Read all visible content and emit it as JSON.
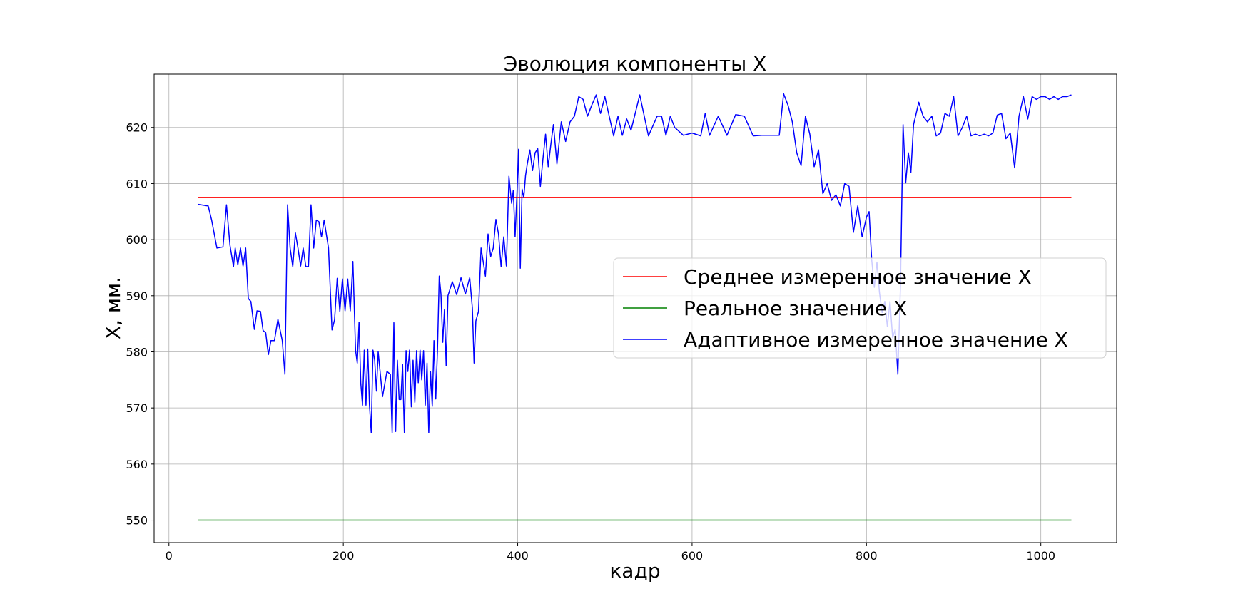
{
  "chart_data": {
    "type": "line",
    "title": "Эволюция компоненты X",
    "xlabel": "кадр",
    "ylabel": "X, мм.",
    "xlim": [
      -17,
      1087
    ],
    "ylim": [
      546,
      629.5
    ],
    "xticks": [
      0,
      200,
      400,
      600,
      800,
      1000
    ],
    "yticks": [
      550,
      560,
      570,
      580,
      590,
      600,
      610,
      620
    ],
    "grid": true,
    "legend_position": "center-right",
    "series": [
      {
        "name": "Среднее измеренное значение X",
        "color": "#ff0000",
        "x": [
          33,
          1035
        ],
        "y": [
          607.5,
          607.5
        ]
      },
      {
        "name": "Реальное значение X",
        "color": "#008000",
        "x": [
          33,
          1035
        ],
        "y": [
          550,
          550
        ]
      },
      {
        "name": "Адаптивное измеренное значение X",
        "color": "#0000ff",
        "x": [
          33,
          45,
          49,
          55,
          62,
          66,
          70,
          74,
          76,
          79,
          82,
          85,
          88,
          91,
          94,
          98,
          101,
          105,
          108,
          111,
          114,
          117,
          121,
          125,
          130,
          133,
          136,
          139,
          142,
          145,
          148,
          151,
          154,
          157,
          160,
          163,
          166,
          169,
          172,
          175,
          178,
          183,
          187,
          190,
          193,
          196,
          199,
          202,
          205,
          208,
          211,
          214,
          216,
          218,
          220,
          222,
          224,
          226,
          228,
          230,
          232,
          234,
          236,
          238,
          240,
          245,
          250,
          254,
          256,
          258,
          260,
          262,
          264,
          266,
          268,
          270,
          272,
          274,
          276,
          278,
          280,
          282,
          284,
          286,
          288,
          290,
          292,
          294,
          296,
          298,
          300,
          302,
          304,
          306,
          308,
          310,
          312,
          314,
          316,
          318,
          320,
          325,
          330,
          335,
          340,
          345,
          348,
          350,
          352,
          355,
          358,
          360,
          363,
          366,
          369,
          372,
          375,
          378,
          381,
          384,
          387,
          390,
          393,
          395,
          397,
          399,
          401,
          403,
          405,
          407,
          409,
          411,
          414,
          417,
          420,
          423,
          426,
          429,
          432,
          435,
          438,
          441,
          445,
          450,
          455,
          460,
          465,
          470,
          475,
          480,
          485,
          490,
          495,
          500,
          505,
          510,
          515,
          520,
          525,
          530,
          540,
          550,
          560,
          565,
          570,
          575,
          580,
          590,
          600,
          610,
          615,
          620,
          630,
          640,
          650,
          660,
          670,
          680,
          690,
          700,
          705,
          710,
          715,
          720,
          725,
          730,
          735,
          740,
          745,
          750,
          755,
          760,
          765,
          770,
          775,
          780,
          785,
          790,
          795,
          800,
          803,
          806,
          809,
          812,
          815,
          818,
          821,
          824,
          827,
          830,
          833,
          836,
          839,
          842,
          845,
          848,
          851,
          854,
          857,
          860,
          865,
          870,
          875,
          880,
          885,
          890,
          895,
          900,
          905,
          910,
          915,
          920,
          925,
          930,
          935,
          940,
          945,
          950,
          955,
          960,
          965,
          970,
          975,
          980,
          985,
          990,
          995,
          1000,
          1005,
          1010,
          1015,
          1020,
          1025,
          1030,
          1035
        ],
        "y": [
          606.3,
          606,
          603.5,
          598.5,
          598.7,
          606.2,
          599,
          595.2,
          598.5,
          595.5,
          598.5,
          595.3,
          598.5,
          589.5,
          589,
          584,
          587.3,
          587.2,
          583.8,
          583.4,
          579.5,
          582,
          582,
          585.8,
          582,
          576,
          606.2,
          598.5,
          595.2,
          601.2,
          598.5,
          595.3,
          598.5,
          595.2,
          595.2,
          606.2,
          598.5,
          603.5,
          603.2,
          600.5,
          603.5,
          598.5,
          583.9,
          585.7,
          593.1,
          587.2,
          593,
          587.3,
          593,
          587.3,
          596.1,
          580.3,
          578,
          585.3,
          574.5,
          570.5,
          580.3,
          570.5,
          580.5,
          570.5,
          565.6,
          580.3,
          578.5,
          573,
          580,
          572,
          576.5,
          576,
          565.6,
          585.2,
          565.8,
          578.5,
          571.5,
          571.5,
          577.8,
          565.6,
          580.2,
          576.5,
          580.3,
          570.2,
          578.5,
          571,
          580.2,
          574.5,
          580.3,
          575,
          580.2,
          570.5,
          578,
          565.6,
          576.5,
          570.3,
          582,
          571.6,
          580.3,
          593.5,
          590.3,
          581.7,
          587.5,
          577.5,
          590,
          592.5,
          590.2,
          593.2,
          590.3,
          593.2,
          587.8,
          578,
          585.5,
          587.2,
          598.5,
          596.5,
          593.5,
          601,
          597,
          598.5,
          603.6,
          601,
          595.2,
          600.5,
          595.3,
          611.3,
          606.5,
          608.8,
          600.5,
          607.5,
          616.1,
          594.9,
          609,
          607.5,
          611.4,
          613.5,
          616,
          612.3,
          615.5,
          616.2,
          609.5,
          614.5,
          618.8,
          613,
          617,
          620.5,
          613.5,
          621,
          617.5,
          621,
          622,
          625.5,
          625,
          622,
          624,
          625.8,
          622.5,
          625.5,
          622,
          618.5,
          622,
          618.6,
          621.5,
          619.5,
          625.8,
          618.5,
          622,
          622,
          618.6,
          622,
          620,
          618.6,
          619,
          618.5,
          622.5,
          618.6,
          622,
          618.6,
          622.3,
          622,
          618.5,
          618.6,
          618.6,
          618.6,
          626,
          624,
          621,
          615.5,
          613.2,
          622,
          618.8,
          613,
          616,
          608.2,
          610,
          607,
          608,
          606,
          610,
          609.5,
          601.3,
          606,
          600.5,
          604,
          605,
          596.5,
          591.5,
          596,
          590.5,
          587,
          589,
          584.5,
          589,
          582.5,
          584,
          576,
          592,
          620.5,
          610.1,
          615.5,
          612,
          620.5,
          622.5,
          624.5,
          622,
          621,
          622,
          618.5,
          619,
          622.5,
          622,
          625.5,
          618.5,
          620,
          622,
          618.5,
          618.8,
          618.5,
          618.8,
          618.5,
          619,
          622.2,
          622.5,
          618,
          619,
          612.8,
          622,
          625.5,
          621.5,
          625.5,
          625,
          625.5,
          625.5,
          625,
          625.5,
          625,
          625.5,
          625.5,
          625.8
        ]
      }
    ]
  }
}
